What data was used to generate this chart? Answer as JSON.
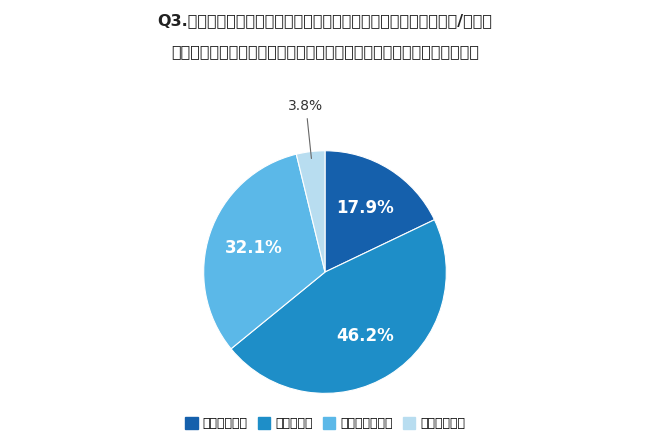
{
  "title_line1": "Q3.あなたは、自治体内の課題解決や地域住民向けサービスの企画/開発に",
  "title_line2": "際して、少ない選択肢や解決案からの検討になっていると感じますか。",
  "slices": [
    17.9,
    46.2,
    32.1,
    3.8
  ],
  "labels": [
    "非常に感じる",
    "少し感じる",
    "あまり感じない",
    "全く感じない"
  ],
  "pct_labels": [
    "17.9%",
    "46.2%",
    "32.1%",
    "3.8%"
  ],
  "colors": [
    "#1560ac",
    "#1e8ec8",
    "#5bb8e8",
    "#b8ddf0"
  ],
  "background_color": "#ffffff",
  "startangle": 90,
  "title_fontsize": 11.5,
  "pct_fontsize": 12
}
